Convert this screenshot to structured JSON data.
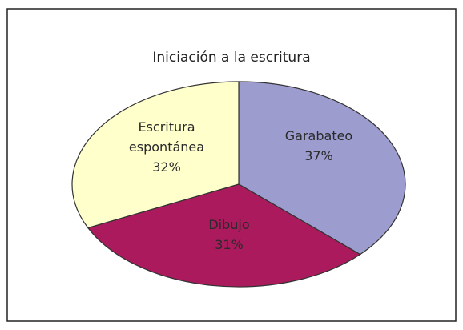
{
  "chart_data": {
    "type": "pie",
    "title": "Iniciación a la escritura",
    "categories": [
      "Garabateo",
      "Dibujo",
      "Escritura espontánea"
    ],
    "values": [
      37,
      31,
      32
    ],
    "value_labels": [
      "37%",
      "31%",
      "32%"
    ],
    "colors": [
      "#9c9ccf",
      "#ab1a5c",
      "#ffffcc"
    ]
  }
}
